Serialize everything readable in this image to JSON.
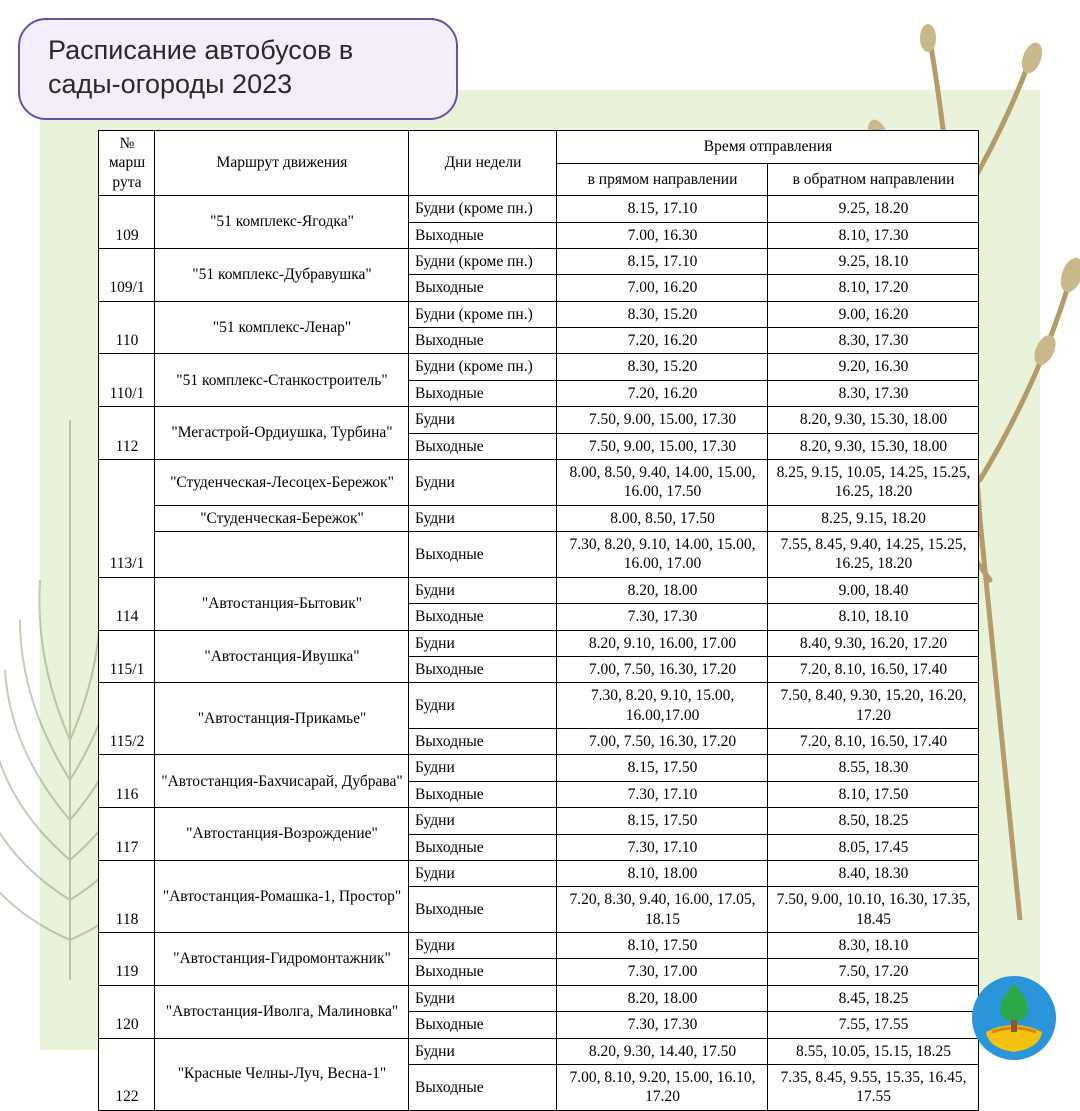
{
  "title": "Расписание автобусов в сады-огороды 2023",
  "background": {
    "page_bg": "#ffffff",
    "panel_bg": "#e8f3d9",
    "title_bg": "#f3eef9",
    "title_border": "#6b4fa0",
    "leaf_dark": "#5e6e3e",
    "branch": "#b59a6a",
    "bud": "#c9b88a"
  },
  "table": {
    "font_family": "Times New Roman",
    "border_color": "#000000",
    "columns": {
      "route_no": "№ марш рута",
      "route": "Маршрут движения",
      "days": "Дни недели",
      "departure_group": "Время отправления",
      "fwd": "в прямом направлении",
      "back": "в обратном направлении"
    },
    "groups": [
      {
        "route_no": "109",
        "routes": [
          {
            "name": "\"51 комплекс-Ягодка\"",
            "rows": [
              {
                "days": "Будни (кроме пн.)",
                "fwd": "8.15, 17.10",
                "back": "9.25, 18.20"
              },
              {
                "days": "Выходные",
                "fwd": "7.00, 16.30",
                "back": "8.10, 17.30"
              }
            ]
          }
        ]
      },
      {
        "route_no": "109/1",
        "routes": [
          {
            "name": "\"51 комплекс-Дубравушка\"",
            "rows": [
              {
                "days": "Будни (кроме пн.)",
                "fwd": "8.15, 17.10",
                "back": "9.25, 18.10"
              },
              {
                "days": "Выходные",
                "fwd": "7.00, 16.20",
                "back": "8.10, 17.20"
              }
            ]
          }
        ]
      },
      {
        "route_no": "110",
        "routes": [
          {
            "name": "\"51 комплекс-Ленар\"",
            "rows": [
              {
                "days": "Будни (кроме пн.)",
                "fwd": "8.30, 15.20",
                "back": "9.00, 16.20"
              },
              {
                "days": "Выходные",
                "fwd": "7.20, 16.20",
                "back": "8.30, 17.30"
              }
            ]
          }
        ]
      },
      {
        "route_no": "110/1",
        "routes": [
          {
            "name": "\"51 комплекс-Станкостроитель\"",
            "rows": [
              {
                "days": "Будни (кроме пн.)",
                "fwd": "8.30, 15.20",
                "back": "9.20, 16.30"
              },
              {
                "days": "Выходные",
                "fwd": "7.20, 16.20",
                "back": "8.30, 17.30"
              }
            ]
          }
        ]
      },
      {
        "route_no": "112",
        "routes": [
          {
            "name": "\"Мегастрой-Ордиушка, Турбина\"",
            "rows": [
              {
                "days": "Будни",
                "fwd": "7.50, 9.00, 15.00, 17.30",
                "back": "8.20, 9.30, 15.30, 18.00"
              },
              {
                "days": "Выходные",
                "fwd": "7.50, 9.00, 15.00, 17.30",
                "back": "8.20, 9.30, 15.30, 18.00"
              }
            ]
          }
        ]
      },
      {
        "route_no": "113/1",
        "routes": [
          {
            "name": "\"Студенческая-Лесоцех-Бережок\"",
            "rows": [
              {
                "days": "Будни",
                "fwd": "8.00, 8.50, 9.40, 14.00, 15.00, 16.00, 17.50",
                "back": "8.25, 9.15, 10.05, 14.25, 15.25, 16.25, 18.20"
              }
            ]
          },
          {
            "name": "\"Студенческая-Бережок\"",
            "rows": [
              {
                "days": "Будни",
                "fwd": "8.00, 8.50, 17.50",
                "back": "8.25, 9.15, 18.20"
              }
            ]
          },
          {
            "name": "",
            "rows": [
              {
                "days": "Выходные",
                "fwd": "7.30, 8.20, 9.10, 14.00, 15.00, 16.00, 17.00",
                "back": "7.55, 8.45, 9.40, 14.25, 15.25, 16.25, 18.20"
              }
            ]
          }
        ]
      },
      {
        "route_no": "114",
        "routes": [
          {
            "name": "\"Автостанция-Бытовик\"",
            "rows": [
              {
                "days": "Будни",
                "fwd": "8.20, 18.00",
                "back": "9.00, 18.40"
              },
              {
                "days": "Выходные",
                "fwd": "7.30, 17.30",
                "back": "8.10, 18.10"
              }
            ]
          }
        ]
      },
      {
        "route_no": "115/1",
        "routes": [
          {
            "name": "\"Автостанция-Ивушка\"",
            "rows": [
              {
                "days": "Будни",
                "fwd": "8.20, 9.10, 16.00, 17.00",
                "back": "8.40, 9.30, 16.20, 17.20"
              },
              {
                "days": "Выходные",
                "fwd": "7.00, 7.50, 16.30, 17.20",
                "back": "7.20, 8.10, 16.50, 17.40"
              }
            ]
          }
        ]
      },
      {
        "route_no": "115/2",
        "routes": [
          {
            "name": "\"Автостанция-Прикамье\"",
            "rows": [
              {
                "days": "Будни",
                "fwd": "7.30, 8.20, 9.10, 15.00, 16.00,17.00",
                "back": "7.50, 8.40, 9.30, 15.20, 16.20, 17.20"
              },
              {
                "days": "Выходные",
                "fwd": "7.00, 7.50, 16.30, 17.20",
                "back": "7.20, 8.10, 16.50, 17.40"
              }
            ]
          }
        ]
      },
      {
        "route_no": "116",
        "routes": [
          {
            "name": "\"Автостанция-Бахчисарай, Дубрава\"",
            "rows": [
              {
                "days": "Будни",
                "fwd": "8.15, 17.50",
                "back": "8.55, 18.30"
              },
              {
                "days": "Выходные",
                "fwd": "7.30, 17.10",
                "back": "8.10, 17.50"
              }
            ]
          }
        ]
      },
      {
        "route_no": "117",
        "routes": [
          {
            "name": "\"Автостанция-Возрождение\"",
            "rows": [
              {
                "days": "Будни",
                "fwd": "8.15, 17.50",
                "back": "8.50, 18.25"
              },
              {
                "days": "Выходные",
                "fwd": "7.30, 17.10",
                "back": "8.05, 17.45"
              }
            ]
          }
        ]
      },
      {
        "route_no": "118",
        "routes": [
          {
            "name": "\"Автостанция-Ромашка-1, Простор\"",
            "rows": [
              {
                "days": "Будни",
                "fwd": "8.10, 18.00",
                "back": "8.40, 18.30"
              },
              {
                "days": "Выходные",
                "fwd": "7.20, 8.30, 9.40, 16.00, 17.05, 18.15",
                "back": "7.50, 9.00, 10.10, 16.30, 17.35, 18.45"
              }
            ]
          }
        ]
      },
      {
        "route_no": "119",
        "routes": [
          {
            "name": "\"Автостанция-Гидромонтажник\"",
            "rows": [
              {
                "days": "Будни",
                "fwd": "8.10, 17.50",
                "back": "8.30, 18.10"
              },
              {
                "days": "Выходные",
                "fwd": "7.30, 17.00",
                "back": "7.50, 17.20"
              }
            ]
          }
        ]
      },
      {
        "route_no": "120",
        "routes": [
          {
            "name": "\"Автостанция-Иволга, Малиновка\"",
            "rows": [
              {
                "days": "Будни",
                "fwd": "8.20, 18.00",
                "back": "8.45, 18.25"
              },
              {
                "days": "Выходные",
                "fwd": "7.30, 17.30",
                "back": "7.55, 17.55"
              }
            ]
          }
        ]
      },
      {
        "route_no": "122",
        "routes": [
          {
            "name": "\"Красные Челны-Луч, Весна-1\"",
            "rows": [
              {
                "days": "Будни",
                "fwd": "8.20, 9.30, 14.40, 17.50",
                "back": "8.55, 10.05, 15.15, 18.25"
              },
              {
                "days": "Выходные",
                "fwd": "7.00, 8.10, 9.20, 15.00, 16.10, 17.20",
                "back": "7.35, 8.45, 9.55, 15.35, 16.45, 17.55"
              }
            ]
          }
        ]
      }
    ]
  }
}
